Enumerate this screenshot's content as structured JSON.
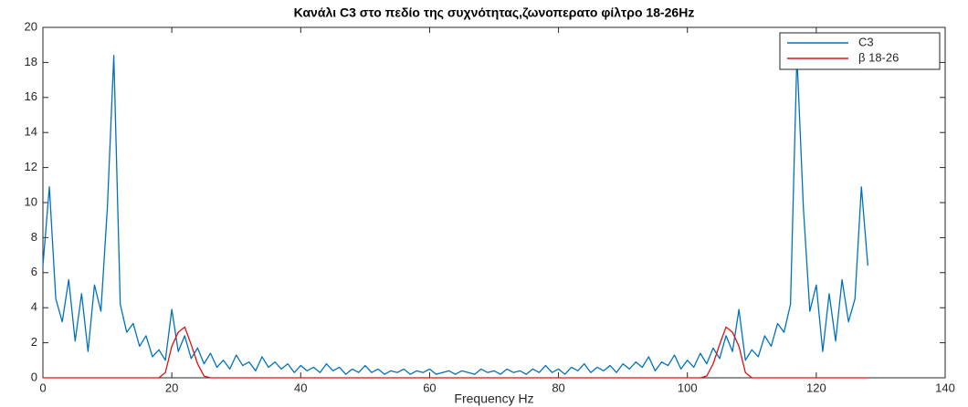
{
  "chart_data": {
    "type": "line",
    "title": "Κανάλι C3 στο πεδίο της συχνότητας,ζωνοπερατο φίλτρο 18-26Hz",
    "x_label": "Frequency Hz",
    "xlim": [
      0,
      140
    ],
    "xticks": [
      0,
      20,
      40,
      60,
      80,
      100,
      120,
      140
    ],
    "ylim": [
      0,
      20
    ],
    "yticks": [
      0,
      2,
      4,
      6,
      8,
      10,
      12,
      14,
      16,
      18,
      20
    ],
    "legend": "upper right",
    "x": [
      0,
      1,
      2,
      3,
      4,
      5,
      6,
      7,
      8,
      9,
      10,
      11,
      12,
      13,
      14,
      15,
      16,
      17,
      18,
      19,
      20,
      21,
      22,
      23,
      24,
      25,
      26,
      27,
      28,
      29,
      30,
      31,
      32,
      33,
      34,
      35,
      36,
      37,
      38,
      39,
      40,
      41,
      42,
      43,
      44,
      45,
      46,
      47,
      48,
      49,
      50,
      51,
      52,
      53,
      54,
      55,
      56,
      57,
      58,
      59,
      60,
      61,
      62,
      63,
      64,
      65,
      66,
      67,
      68,
      69,
      70,
      71,
      72,
      73,
      74,
      75,
      76,
      77,
      78,
      79,
      80,
      81,
      82,
      83,
      84,
      85,
      86,
      87,
      88,
      89,
      90,
      91,
      92,
      93,
      94,
      95,
      96,
      97,
      98,
      99,
      100,
      101,
      102,
      103,
      104,
      105,
      106,
      107,
      108,
      109,
      110,
      111,
      112,
      113,
      114,
      115,
      116,
      117,
      118,
      119,
      120,
      121,
      122,
      123,
      124,
      125,
      126,
      127,
      128
    ],
    "series": [
      {
        "name": "C3",
        "color": "#0072bd",
        "values": [
          6.4,
          10.9,
          4.5,
          3.2,
          5.6,
          2.1,
          4.8,
          1.5,
          5.3,
          3.8,
          9.7,
          18.4,
          4.2,
          2.6,
          3.1,
          1.8,
          2.4,
          1.2,
          1.6,
          1.0,
          3.9,
          1.5,
          2.4,
          1.1,
          1.7,
          0.8,
          1.4,
          0.6,
          1.0,
          0.5,
          1.3,
          0.7,
          0.9,
          0.4,
          1.2,
          0.6,
          0.9,
          0.5,
          0.8,
          0.3,
          0.7,
          0.4,
          0.6,
          0.3,
          0.8,
          0.4,
          0.6,
          0.2,
          0.5,
          0.3,
          0.7,
          0.3,
          0.5,
          0.2,
          0.4,
          0.3,
          0.5,
          0.2,
          0.4,
          0.3,
          0.5,
          0.2,
          0.3,
          0.4,
          0.2,
          0.4,
          0.3,
          0.2,
          0.5,
          0.3,
          0.4,
          0.2,
          0.5,
          0.3,
          0.4,
          0.2,
          0.5,
          0.3,
          0.7,
          0.3,
          0.5,
          0.2,
          0.6,
          0.4,
          0.8,
          0.3,
          0.6,
          0.4,
          0.7,
          0.3,
          0.8,
          0.5,
          0.9,
          0.6,
          1.2,
          0.4,
          0.9,
          0.7,
          1.3,
          0.5,
          1.0,
          0.6,
          1.4,
          0.8,
          1.7,
          1.1,
          2.4,
          1.5,
          3.9,
          1.0,
          1.6,
          1.2,
          2.4,
          1.8,
          3.1,
          2.6,
          4.2,
          18.4,
          9.7,
          3.8,
          5.3,
          1.5,
          4.8,
          2.1,
          5.6,
          3.2,
          4.5,
          10.9,
          6.4
        ]
      },
      {
        "name": "β 18-26",
        "color": "#e01010",
        "values": [
          0,
          0,
          0,
          0,
          0,
          0,
          0,
          0,
          0,
          0,
          0,
          0,
          0,
          0,
          0,
          0,
          0,
          0,
          0,
          0.3,
          1.8,
          2.6,
          2.9,
          1.9,
          0.8,
          0.1,
          0,
          0,
          0,
          0,
          0,
          0,
          0,
          0,
          0,
          0,
          0,
          0,
          0,
          0,
          0,
          0,
          0,
          0,
          0,
          0,
          0,
          0,
          0,
          0,
          0,
          0,
          0,
          0,
          0,
          0,
          0,
          0,
          0,
          0,
          0,
          0,
          0,
          0,
          0,
          0,
          0,
          0,
          0,
          0,
          0,
          0,
          0,
          0,
          0,
          0,
          0,
          0,
          0,
          0,
          0,
          0,
          0,
          0,
          0,
          0,
          0,
          0,
          0,
          0,
          0,
          0,
          0,
          0,
          0,
          0,
          0,
          0,
          0,
          0,
          0,
          0,
          0,
          0.1,
          0.8,
          1.9,
          2.9,
          2.6,
          1.8,
          0.3,
          0,
          0,
          0,
          0,
          0,
          0,
          0,
          0,
          0,
          0,
          0,
          0,
          0,
          0,
          0,
          0,
          0,
          0,
          0
        ]
      }
    ]
  }
}
